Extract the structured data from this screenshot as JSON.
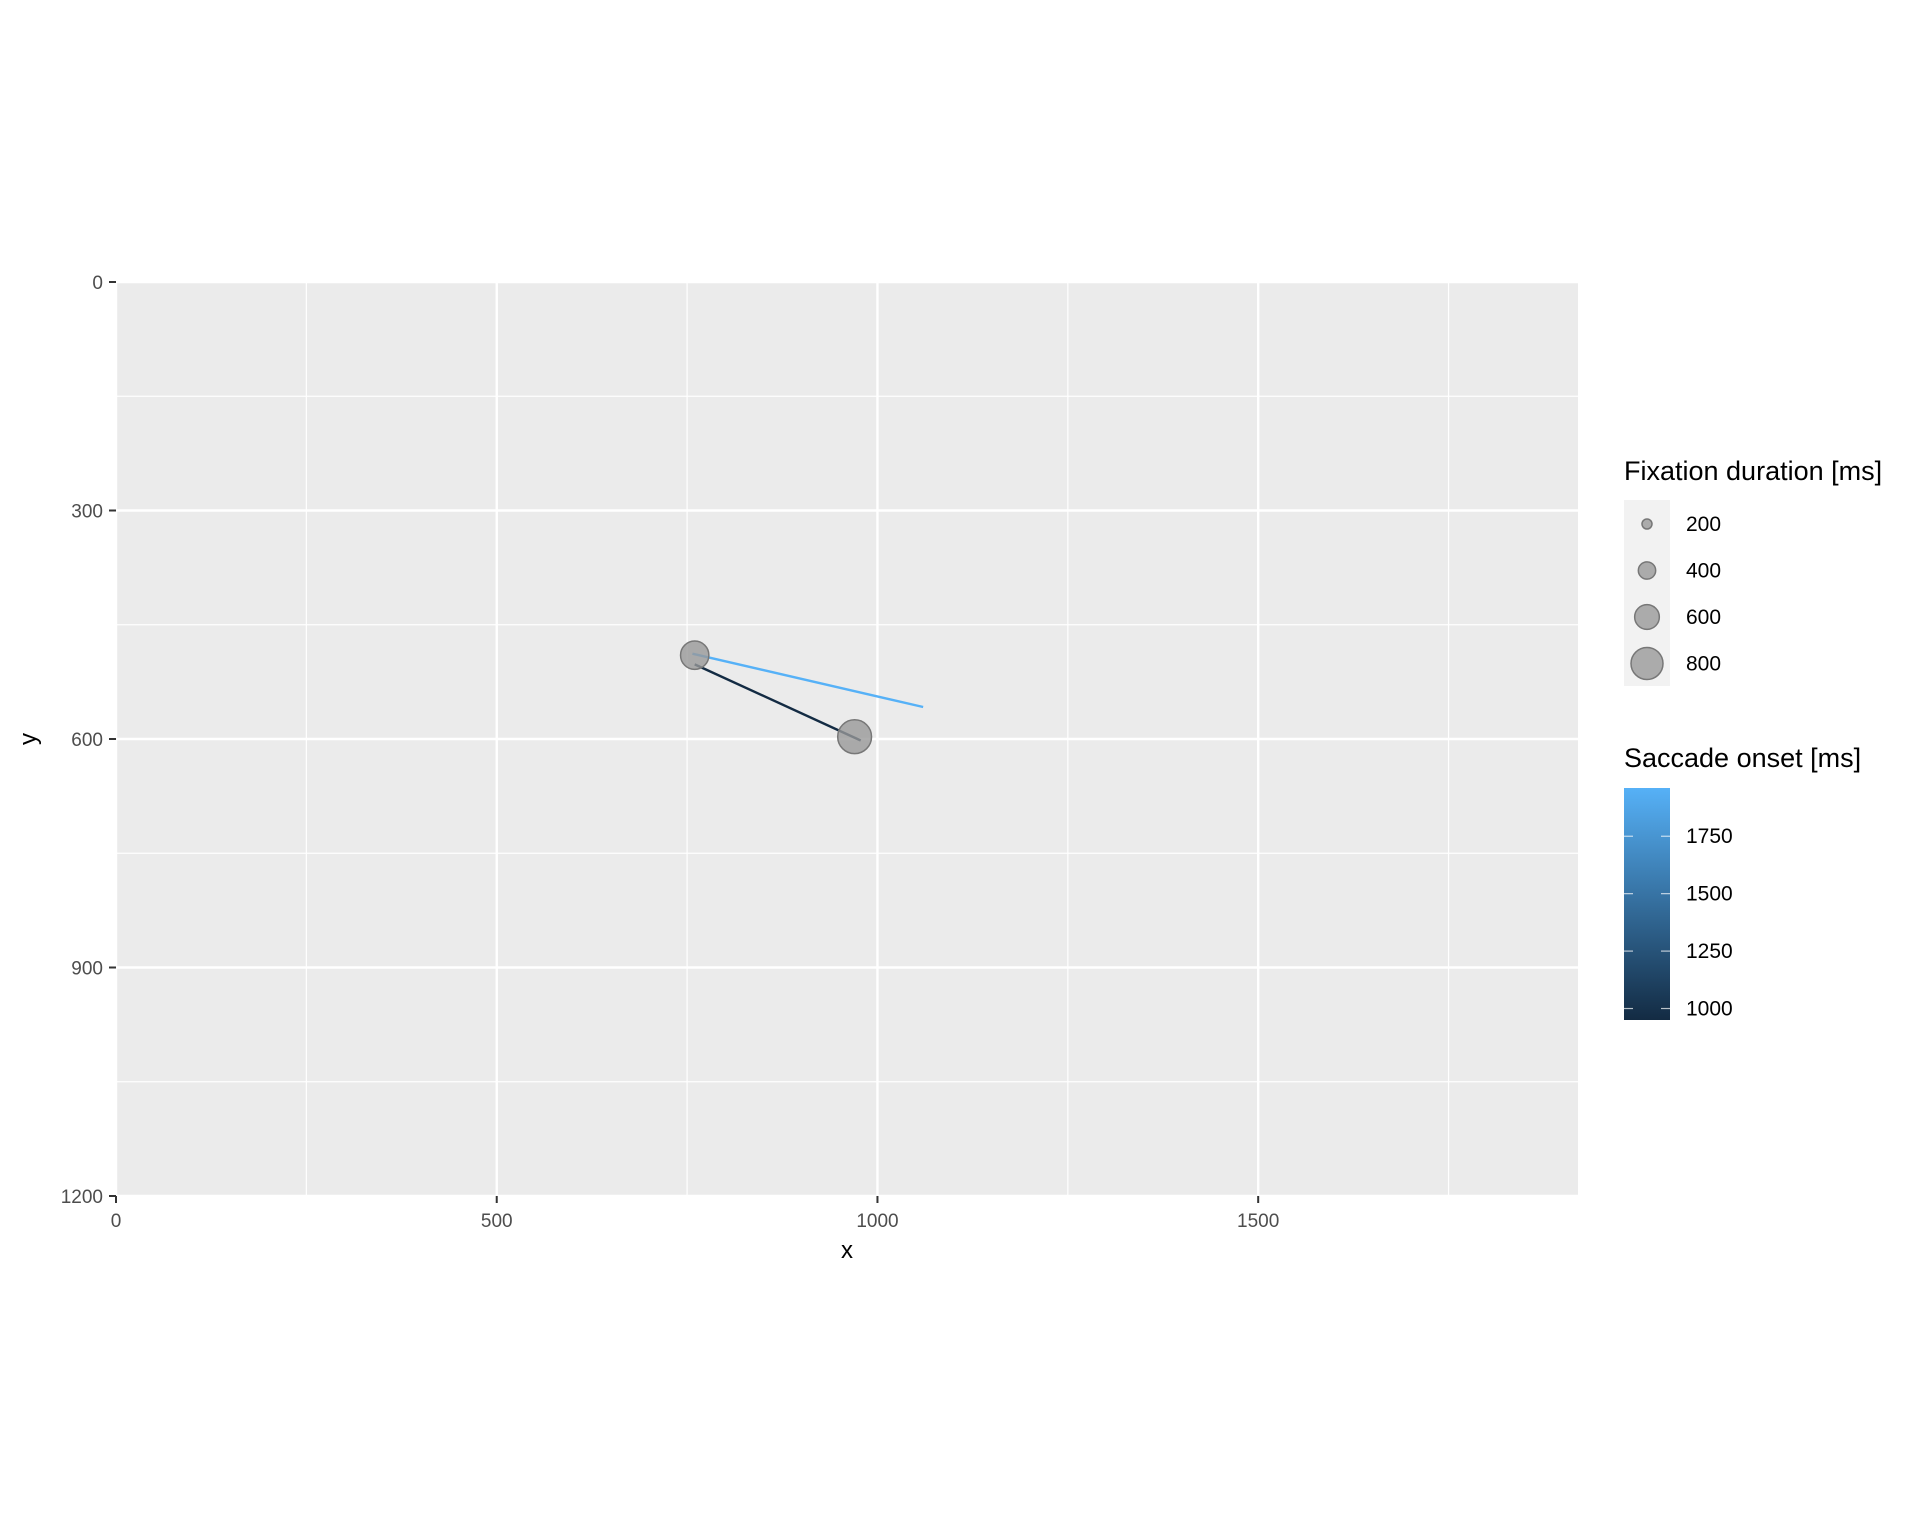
{
  "chart_data": {
    "type": "scatter",
    "title": "",
    "xlabel": "x",
    "ylabel": "y",
    "xlim": [
      0,
      1920
    ],
    "ylim": [
      0,
      1200
    ],
    "y_reversed": true,
    "grid": true,
    "legend_position": "right",
    "x_ticks": [
      0,
      500,
      1000,
      1500
    ],
    "x_tick_labels": [
      "0",
      "500",
      "1000",
      "1500"
    ],
    "y_ticks": [
      0,
      300,
      600,
      900,
      1200
    ],
    "y_tick_labels": [
      "0",
      "300",
      "600",
      "900",
      "1200"
    ],
    "fixations": [
      {
        "x": 760,
        "y": 490,
        "duration": 700
      },
      {
        "x": 970,
        "y": 597,
        "duration": 850
      }
    ],
    "saccades": [
      {
        "x0": 760,
        "y0": 502,
        "x1": 978,
        "y1": 602,
        "onset": 950
      },
      {
        "x0": 757,
        "y0": 488,
        "x1": 1060,
        "y1": 558,
        "onset": 1960
      }
    ],
    "size_legend": {
      "title": "Fixation duration [ms]",
      "entries": [
        200,
        400,
        600,
        800
      ],
      "labels": [
        "200",
        "400",
        "600",
        "800"
      ]
    },
    "color_legend": {
      "title": "Saccade onset [ms]",
      "range": [
        950,
        1960
      ],
      "ticks": [
        1000,
        1250,
        1500,
        1750
      ],
      "labels": [
        "1000",
        "1250",
        "1500",
        "1750"
      ],
      "color_low": "#132b43",
      "color_high": "#56b1f7"
    },
    "colors": {
      "panel_background": "#ebebeb",
      "grid": "#ffffff",
      "fixation_fill": "#999999",
      "fixation_stroke": "#777777"
    }
  }
}
